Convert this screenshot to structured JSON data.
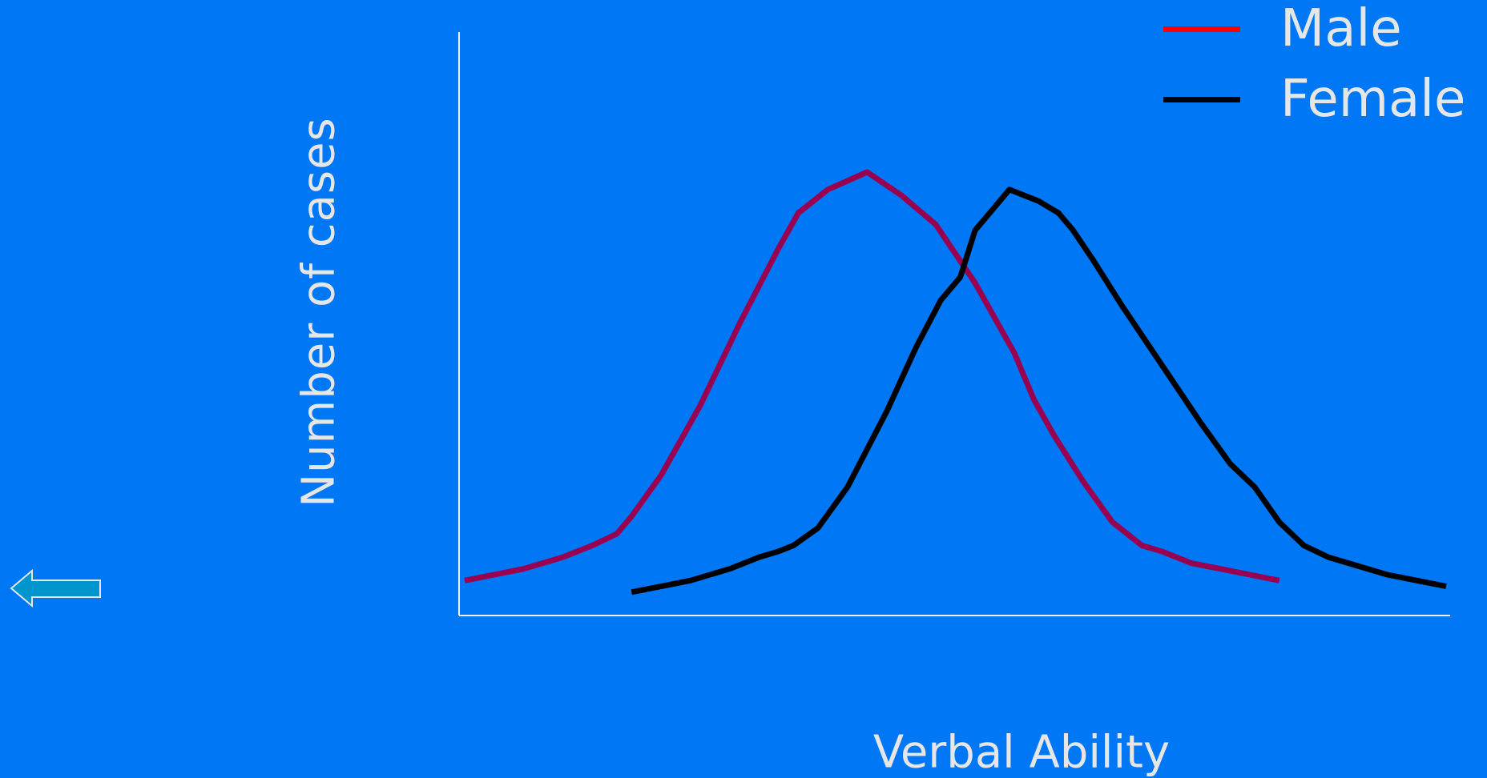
{
  "chart_data": {
    "type": "line",
    "title": "",
    "xlabel": "Verbal Ability",
    "ylabel": "Number of cases",
    "xlim": [
      0,
      100
    ],
    "ylim": [
      0,
      100
    ],
    "grid": false,
    "legend_position": "top-right",
    "series": [
      {
        "name": "Male",
        "legend_color": "#FF0000",
        "line_color": "#9A0050",
        "x": [
          0,
          6,
          10,
          13,
          15.5,
          17,
          20,
          24,
          28,
          32,
          34,
          37,
          41,
          44.5,
          48,
          52,
          56,
          58,
          60,
          61.5,
          63,
          66,
          69,
          71,
          74,
          77,
          80,
          83
        ],
        "y": [
          6,
          8,
          10,
          12,
          14,
          17,
          24,
          36,
          50,
          63,
          69,
          73,
          76,
          72,
          67,
          57,
          45,
          37,
          31,
          27,
          23,
          16,
          12,
          11,
          9,
          8,
          7,
          6
        ]
      },
      {
        "name": "Female",
        "legend_color": "#000000",
        "line_color": "#000000",
        "x": [
          17,
          23,
          27,
          30,
          32,
          33.5,
          36,
          39,
          43,
          46,
          48.5,
          50.5,
          52,
          55.5,
          58.5,
          60.5,
          62,
          64,
          67,
          71,
          75,
          78,
          80.5,
          83,
          85.5,
          88,
          94,
          100
        ],
        "y": [
          4,
          6,
          8,
          10,
          11,
          12,
          15,
          22,
          35,
          46,
          54,
          58,
          66,
          73,
          71,
          69,
          66,
          61,
          53,
          43,
          33,
          26,
          22,
          16,
          12,
          10,
          7,
          5
        ]
      }
    ]
  },
  "nav": {
    "back_icon": "left-arrow-icon",
    "arrow_fill": "#0096CD",
    "arrow_stroke": "#E6E6E6"
  },
  "colors": {
    "background": "#0078F5",
    "text": "#E6E6E6",
    "axis": "#F0F0F0"
  }
}
